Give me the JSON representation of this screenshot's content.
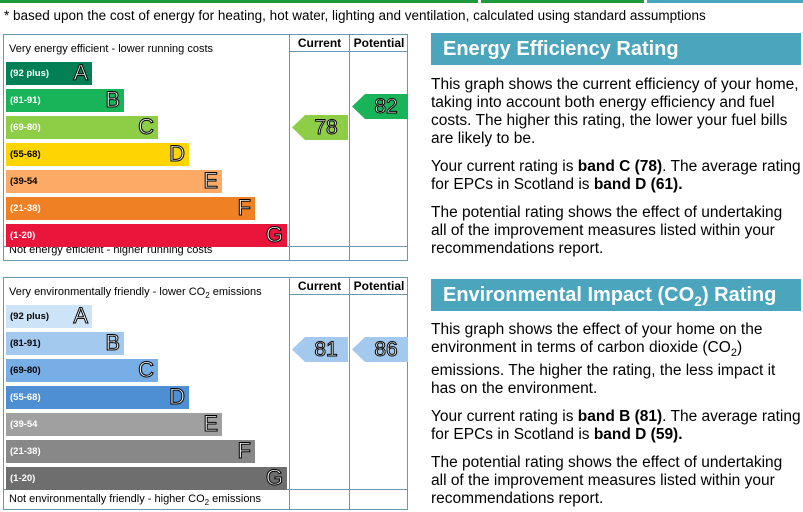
{
  "footnote": "* based upon the cost of energy for heating, hot water, lighting and ventilation, calculated using standard assumptions",
  "columns": {
    "current": "Current",
    "potential": "Potential"
  },
  "energy": {
    "top_label": "Very energy efficient - lower running costs",
    "bottom_label": "Not energy efficient - higher running costs",
    "bands": [
      {
        "range": "(92 plus)",
        "letter": "A",
        "color": "#008054"
      },
      {
        "range": "(81-91)",
        "letter": "B",
        "color": "#19b459"
      },
      {
        "range": "(69-80)",
        "letter": "C",
        "color": "#8dce46"
      },
      {
        "range": "(55-68)",
        "letter": "D",
        "color": "#ffd500"
      },
      {
        "range": "(39-54",
        "letter": "E",
        "color": "#fcaa65"
      },
      {
        "range": "(21-38)",
        "letter": "F",
        "color": "#ef8023"
      },
      {
        "range": "(1-20)",
        "letter": "G",
        "color": "#e9153b"
      }
    ],
    "current": {
      "value": "78",
      "color": "#8dce46"
    },
    "potential": {
      "value": "82",
      "color": "#19b459"
    },
    "title": "Energy Efficiency Rating",
    "para1": "This graph shows the current efficiency of your home, taking into account both energy efficiency and fuel costs. The higher this rating, the lower your fuel bills are likely to be.",
    "para2_pre": "Your current rating is ",
    "para2_b1": "band C (78)",
    "para2_mid": ". The average rating for EPCs in Scotland is ",
    "para2_b2": "band D (61).",
    "para3": "The potential rating shows the effect of undertaking all of the improvement measures listed within your recommendations report."
  },
  "environment": {
    "top_label_pre": "Very environmentally friendly - lower CO",
    "top_label_sub": "2",
    "top_label_post": " emissions",
    "bottom_label_pre": "Not environmentally friendly - higher CO",
    "bottom_label_sub": "2",
    "bottom_label_post": " emissions",
    "bands": [
      {
        "range": "(92 plus)",
        "letter": "A",
        "color": "#cde3f8"
      },
      {
        "range": "(81-91)",
        "letter": "B",
        "color": "#a3c9ef"
      },
      {
        "range": "(69-80)",
        "letter": "C",
        "color": "#78aee6"
      },
      {
        "range": "(55-68)",
        "letter": "D",
        "color": "#4d8fd2"
      },
      {
        "range": "(39-54",
        "letter": "E",
        "color": "#a0a0a0"
      },
      {
        "range": "(21-38)",
        "letter": "F",
        "color": "#888888"
      },
      {
        "range": "(1-20)",
        "letter": "G",
        "color": "#6e6e6e"
      }
    ],
    "current": {
      "value": "81",
      "color": "#a3c9ef"
    },
    "potential": {
      "value": "86",
      "color": "#a3c9ef"
    },
    "title_pre": "Environmental Impact (CO",
    "title_sub": "2",
    "title_post": ") Rating",
    "para1_pre": "This graph shows the effect of your home on the environment in terms of carbon dioxide (CO",
    "para1_sub": "2",
    "para1_post": ") emissions. The higher the rating, the less impact it has on the environment.",
    "para2_pre": "Your current rating is ",
    "para2_b1": "band B (81)",
    "para2_mid": ". The average rating for EPCs in Scotland is ",
    "para2_b2": "band D (59).",
    "para3": "The potential rating shows the effect of undertaking all of the improvement measures listed within your recommendations report."
  }
}
